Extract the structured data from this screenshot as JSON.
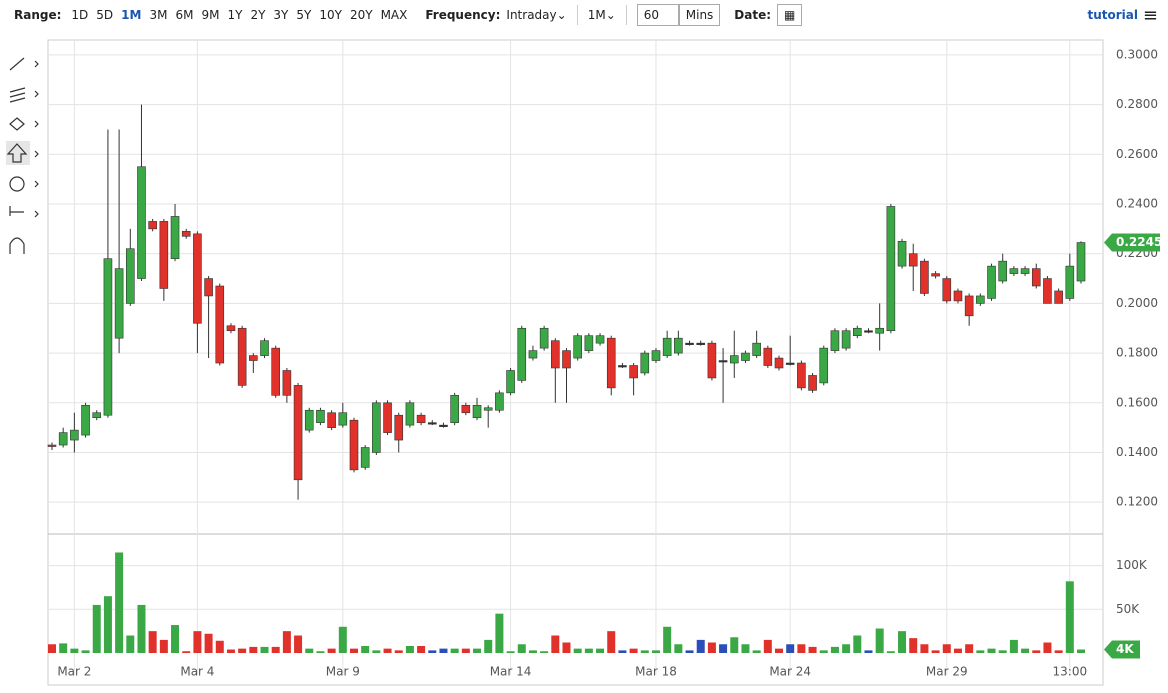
{
  "toolbar": {
    "range_label": "Range:",
    "ranges": [
      "1D",
      "5D",
      "1M",
      "3M",
      "6M",
      "9M",
      "1Y",
      "2Y",
      "3Y",
      "5Y",
      "10Y",
      "20Y",
      "MAX"
    ],
    "selected_range": "1M",
    "frequency_label": "Frequency:",
    "frequency": "Intraday",
    "period": "1M",
    "interval": "60",
    "interval_unit": "Mins",
    "date_label": "Date:",
    "tutorial": "tutorial"
  },
  "chart_data": {
    "type": "candlestick",
    "categories": [
      null,
      null,
      "Mar 2",
      null,
      null,
      null,
      null,
      null,
      null,
      null,
      null,
      null,
      null,
      "Mar 4",
      null,
      null,
      null,
      null,
      null,
      null,
      null,
      null,
      null,
      null,
      null,
      null,
      "Mar 9",
      null,
      null,
      null,
      null,
      null,
      null,
      null,
      null,
      null,
      null,
      null,
      null,
      null,
      null,
      "Mar 14",
      null,
      null,
      null,
      null,
      null,
      null,
      null,
      null,
      null,
      null,
      null,
      null,
      "Mar 18",
      null,
      null,
      null,
      null,
      null,
      null,
      null,
      null,
      null,
      null,
      null,
      "Mar 24",
      null,
      null,
      null,
      null,
      null,
      null,
      null,
      null,
      null,
      null,
      null,
      null,
      null,
      "Mar 29",
      null,
      null,
      null,
      null,
      null,
      null,
      null,
      null,
      null,
      null,
      "13:00",
      null
    ],
    "open": [
      0.143,
      0.143,
      0.145,
      0.147,
      0.154,
      0.155,
      0.186,
      0.2,
      0.21,
      0.233,
      0.233,
      0.218,
      0.229,
      0.228,
      0.21,
      0.207,
      0.191,
      0.19,
      0.179,
      0.179,
      0.182,
      0.173,
      0.167,
      0.149,
      0.152,
      0.156,
      0.151,
      0.153,
      0.134,
      0.14,
      0.16,
      0.155,
      0.151,
      0.155,
      0.152,
      0.151,
      0.152,
      0.159,
      0.154,
      0.157,
      0.157,
      0.164,
      0.169,
      0.178,
      0.182,
      0.185,
      0.181,
      0.178,
      0.181,
      0.184,
      0.186,
      0.175,
      0.175,
      0.172,
      0.177,
      0.179,
      0.18,
      0.184,
      0.184,
      0.184,
      0.177,
      0.176,
      0.177,
      0.179,
      0.182,
      0.178,
      0.176,
      0.176,
      0.171,
      0.168,
      0.181,
      0.182,
      0.187,
      0.189,
      0.188,
      0.189,
      0.215,
      0.22,
      0.217,
      0.212,
      0.21,
      0.205,
      0.203,
      0.2,
      0.202,
      0.209,
      0.212,
      0.212,
      0.214,
      0.21,
      0.205,
      0.202,
      0.209
    ],
    "high": [
      0.144,
      0.15,
      0.156,
      0.16,
      0.157,
      0.27,
      0.27,
      0.23,
      0.28,
      0.234,
      0.234,
      0.24,
      0.23,
      0.229,
      0.211,
      0.208,
      0.192,
      0.191,
      0.18,
      0.186,
      0.183,
      0.174,
      0.168,
      0.158,
      0.158,
      0.157,
      0.16,
      0.154,
      0.143,
      0.161,
      0.161,
      0.156,
      0.161,
      0.156,
      0.153,
      0.152,
      0.164,
      0.16,
      0.162,
      0.159,
      0.165,
      0.174,
      0.191,
      0.183,
      0.191,
      0.186,
      0.182,
      0.188,
      0.188,
      0.188,
      0.187,
      0.176,
      0.176,
      0.181,
      0.182,
      0.189,
      0.189,
      0.185,
      0.185,
      0.185,
      0.182,
      0.189,
      0.181,
      0.189,
      0.183,
      0.179,
      0.187,
      0.177,
      0.172,
      0.183,
      0.19,
      0.19,
      0.191,
      0.19,
      0.2,
      0.24,
      0.226,
      0.224,
      0.218,
      0.213,
      0.211,
      0.206,
      0.204,
      0.204,
      0.216,
      0.22,
      0.215,
      0.215,
      0.216,
      0.211,
      0.206,
      0.22,
      0.225
    ],
    "low": [
      0.141,
      0.142,
      0.14,
      0.146,
      0.153,
      0.154,
      0.18,
      0.199,
      0.209,
      0.229,
      0.201,
      0.217,
      0.226,
      0.18,
      0.178,
      0.175,
      0.188,
      0.166,
      0.172,
      0.178,
      0.162,
      0.16,
      0.121,
      0.148,
      0.151,
      0.149,
      0.15,
      0.132,
      0.133,
      0.139,
      0.147,
      0.14,
      0.15,
      0.151,
      0.151,
      0.15,
      0.151,
      0.155,
      0.153,
      0.15,
      0.156,
      0.163,
      0.168,
      0.177,
      0.181,
      0.16,
      0.16,
      0.177,
      0.18,
      0.183,
      0.163,
      0.174,
      0.163,
      0.171,
      0.176,
      0.178,
      0.179,
      0.183,
      0.183,
      0.169,
      0.16,
      0.17,
      0.176,
      0.178,
      0.174,
      0.173,
      0.175,
      0.165,
      0.164,
      0.167,
      0.18,
      0.181,
      0.186,
      0.188,
      0.181,
      0.188,
      0.214,
      0.205,
      0.203,
      0.21,
      0.2,
      0.2,
      0.191,
      0.199,
      0.201,
      0.208,
      0.211,
      0.211,
      0.206,
      0.2,
      0.2,
      0.201,
      0.208
    ],
    "close": [
      0.1425,
      0.148,
      0.149,
      0.159,
      0.156,
      0.218,
      0.214,
      0.222,
      0.255,
      0.23,
      0.206,
      0.235,
      0.227,
      0.192,
      0.203,
      0.176,
      0.189,
      0.167,
      0.177,
      0.185,
      0.163,
      0.163,
      0.129,
      0.157,
      0.157,
      0.15,
      0.156,
      0.133,
      0.142,
      0.16,
      0.148,
      0.145,
      0.16,
      0.152,
      0.152,
      0.151,
      0.163,
      0.156,
      0.159,
      0.158,
      0.164,
      0.173,
      0.19,
      0.181,
      0.19,
      0.174,
      0.174,
      0.187,
      0.187,
      0.187,
      0.166,
      0.175,
      0.17,
      0.18,
      0.181,
      0.186,
      0.186,
      0.184,
      0.184,
      0.17,
      0.177,
      0.179,
      0.18,
      0.184,
      0.175,
      0.174,
      0.176,
      0.166,
      0.165,
      0.182,
      0.189,
      0.189,
      0.19,
      0.189,
      0.19,
      0.239,
      0.225,
      0.215,
      0.204,
      0.211,
      0.201,
      0.201,
      0.195,
      0.203,
      0.215,
      0.217,
      0.214,
      0.214,
      0.207,
      0.2,
      0.2,
      0.215,
      0.2245
    ],
    "volume": [
      10000,
      11000,
      5000,
      3000,
      55000,
      65000,
      115000,
      20000,
      55000,
      25000,
      15000,
      32000,
      2000,
      25000,
      22000,
      14000,
      4000,
      5000,
      7000,
      7000,
      7000,
      25000,
      20000,
      5000,
      2000,
      5000,
      30000,
      5000,
      8000,
      3000,
      5000,
      3000,
      8000,
      8000,
      3000,
      5000,
      5000,
      5000,
      5000,
      15000,
      45000,
      2000,
      10000,
      3000,
      2000,
      20000,
      12000,
      5000,
      5000,
      5000,
      25000,
      3000,
      5000,
      3000,
      3000,
      30000,
      10000,
      3000,
      15000,
      12000,
      10000,
      18000,
      10000,
      3000,
      15000,
      5000,
      10000,
      10000,
      7000,
      3000,
      7000,
      10000,
      20000,
      3000,
      28000,
      2000,
      25000,
      17000,
      10000,
      3000,
      10000,
      5000,
      10000,
      3000,
      5000,
      3000,
      15000,
      5000,
      3000,
      12000,
      3000,
      82000,
      4000
    ],
    "last_volume_label": "4K",
    "up_color": "#3aa845",
    "down_color": "#e0312a",
    "flat_color": "#2a4fb8",
    "ylim": [
      0.108,
      0.306
    ],
    "yticks": [
      {
        "value": 0.12,
        "label": "0.1200"
      },
      {
        "value": 0.14,
        "label": "0.1400"
      },
      {
        "value": 0.16,
        "label": "0.1600"
      },
      {
        "value": 0.18,
        "label": "0.1800"
      },
      {
        "value": 0.2,
        "label": "0.2000"
      },
      {
        "value": 0.22,
        "label": "0.2200"
      },
      {
        "value": 0.24,
        "label": "0.2400"
      },
      {
        "value": 0.26,
        "label": "0.2600"
      },
      {
        "value": 0.28,
        "label": "0.2800"
      },
      {
        "value": 0.3,
        "label": "0.3000"
      }
    ],
    "y2lim": [
      0,
      135000
    ],
    "y2ticks": [
      {
        "value": 50000,
        "label": "50K"
      },
      {
        "value": 100000,
        "label": "100K"
      }
    ],
    "grid": true
  }
}
